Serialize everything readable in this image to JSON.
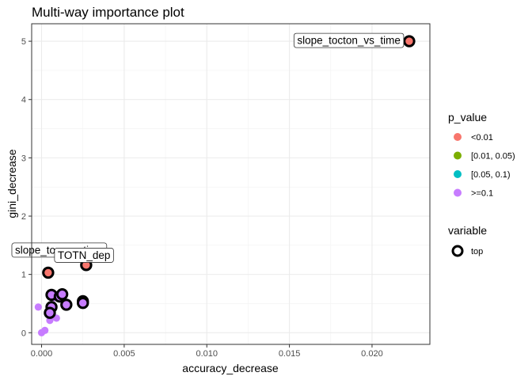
{
  "chart_data": {
    "type": "scatter",
    "title": "Multi-way importance plot",
    "xlabel": "accuracy_decrease",
    "ylabel": "gini_decrease",
    "xlim": [
      -0.0006,
      0.0235
    ],
    "ylim": [
      -0.2,
      5.3
    ],
    "x_ticks": [
      0.0,
      0.005,
      0.01,
      0.015,
      0.02
    ],
    "x_tick_labels": [
      "0.000",
      "0.005",
      "0.010",
      "0.015",
      "0.020"
    ],
    "y_ticks": [
      0,
      1,
      2,
      3,
      4,
      5
    ],
    "y_tick_labels": [
      "0",
      "1",
      "2",
      "3",
      "4",
      "5"
    ],
    "grid": true,
    "legend": {
      "position": "right",
      "color_title": "p_value",
      "color_entries": [
        {
          "label": "<0.01",
          "color": "#F8766D"
        },
        {
          "label": "[0.01, 0.05)",
          "color": "#7CAE00"
        },
        {
          "label": "[0.05, 0.1)",
          "color": "#00BFC4"
        },
        {
          "label": ">=0.1",
          "color": "#C77CFF"
        }
      ],
      "shape_title": "variable",
      "shape_entries": [
        {
          "label": "top"
        }
      ]
    },
    "points": [
      {
        "x": 0.02225,
        "y": 5.0,
        "p": "<0.01",
        "top": true,
        "label": "slope_tocton_vs_time"
      },
      {
        "x": 0.0027,
        "y": 1.16,
        "p": "<0.01",
        "top": true,
        "label": "slope_toc_vs_time"
      },
      {
        "x": 0.0004,
        "y": 1.03,
        "p": "<0.01",
        "top": true,
        "label": "TOTN_dep"
      },
      {
        "x": 0.0006,
        "y": 0.65,
        "p": ">=0.1",
        "top": true
      },
      {
        "x": 0.0011,
        "y": 0.62,
        "p": ">=0.1",
        "top": true
      },
      {
        "x": 0.00125,
        "y": 0.66,
        "p": ">=0.1",
        "top": true
      },
      {
        "x": 0.0025,
        "y": 0.54,
        "p": ">=0.1",
        "top": true
      },
      {
        "x": 0.0025,
        "y": 0.51,
        "p": ">=0.1",
        "top": true
      },
      {
        "x": 0.0015,
        "y": 0.48,
        "p": ">=0.1",
        "top": true
      },
      {
        "x": 0.0006,
        "y": 0.44,
        "p": ">=0.1",
        "top": true
      },
      {
        "x": 0.0005,
        "y": 0.34,
        "p": ">=0.1",
        "top": true
      },
      {
        "x": -0.0002,
        "y": 0.44,
        "p": ">=0.1",
        "top": false
      },
      {
        "x": 0.0008,
        "y": 0.6,
        "p": ">=0.1",
        "top": false
      },
      {
        "x": 0.0009,
        "y": 0.25,
        "p": ">=0.1",
        "top": false
      },
      {
        "x": 0.0005,
        "y": 0.21,
        "p": ">=0.1",
        "top": false
      },
      {
        "x": 0.0002,
        "y": 0.04,
        "p": ">=0.1",
        "top": false
      },
      {
        "x": 0.0,
        "y": 0.0,
        "p": ">=0.1",
        "top": false
      }
    ]
  }
}
